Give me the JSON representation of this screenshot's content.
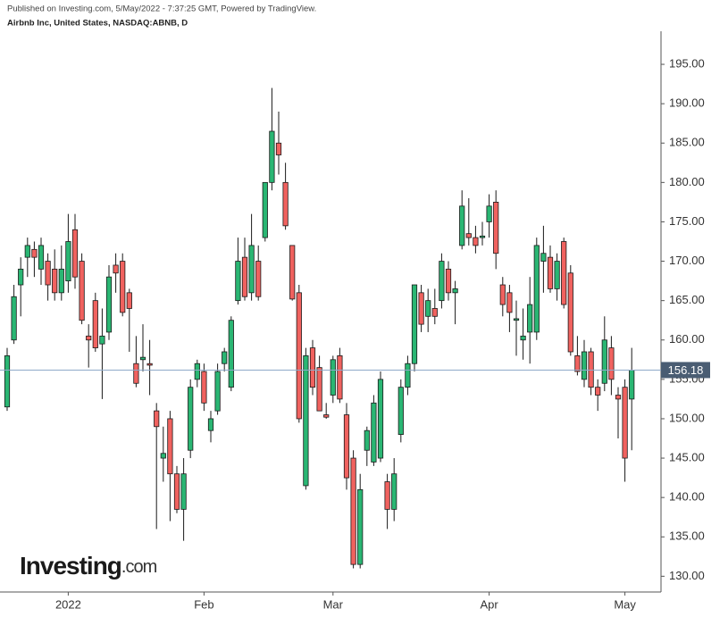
{
  "chart_data": {
    "type": "candlestick",
    "header": "Published on Investing.com, 5/May/2022 - 7:37:25 GMT, Powered by TradingView.",
    "title": "Airbnb Inc, United States, NASDAQ:ABNB, D",
    "watermark": [
      "Investing",
      ".com"
    ],
    "up_color": "#2ab673",
    "down_color": "#f0625f",
    "categories": [
      null,
      null,
      null,
      null,
      null,
      null,
      null,
      null,
      null,
      "2022",
      null,
      null,
      null,
      null,
      null,
      null,
      null,
      null,
      null,
      null,
      null,
      null,
      null,
      null,
      null,
      null,
      null,
      null,
      null,
      "Feb",
      null,
      null,
      null,
      null,
      null,
      null,
      null,
      null,
      null,
      null,
      null,
      null,
      null,
      null,
      null,
      null,
      null,
      null,
      "Mar",
      null,
      null,
      null,
      null,
      null,
      null,
      null,
      null,
      null,
      null,
      null,
      null,
      null,
      null,
      null,
      null,
      null,
      null,
      null,
      null,
      null,
      null,
      "Apr",
      null,
      null,
      null,
      null,
      null,
      null,
      null,
      null,
      null,
      null,
      null,
      null,
      null,
      null,
      null,
      null,
      null,
      null,
      null,
      "May",
      null
    ],
    "open": [
      151.5,
      160,
      167,
      170.5,
      171.5,
      169,
      170,
      169,
      166,
      167.5,
      174,
      170,
      160.5,
      165,
      159.5,
      161,
      169.5,
      170,
      166,
      157,
      157.5,
      157,
      151,
      145,
      150,
      143,
      138.5,
      146,
      155,
      156,
      148.5,
      151,
      157,
      154,
      165,
      170.5,
      166,
      170,
      173,
      180,
      185,
      180,
      172,
      166,
      141.5,
      159,
      156.5,
      150.5,
      153,
      158,
      150.5,
      145,
      131.5,
      146,
      144.5,
      145,
      142,
      138.5,
      148,
      154,
      157,
      166,
      163,
      164,
      165,
      169,
      166,
      172,
      173.5,
      173,
      173,
      175,
      177.5,
      167,
      166,
      162.5,
      160,
      161,
      161,
      170,
      170.5,
      166.5,
      172.5,
      168.5,
      158,
      155,
      158.5,
      154,
      154.5,
      159,
      153,
      154,
      152.5
    ],
    "high": [
      159,
      167,
      170.5,
      173,
      172.5,
      173,
      171,
      171.5,
      172,
      176,
      176,
      171,
      162,
      166,
      164,
      169.5,
      171,
      171,
      166.5,
      160.5,
      162,
      160,
      152,
      149,
      151,
      144,
      145,
      155,
      157.5,
      157,
      151,
      157,
      159,
      163,
      173,
      173,
      176,
      172,
      180,
      192,
      189,
      182.5,
      172,
      167,
      159,
      160,
      158,
      152,
      158,
      159,
      152,
      146,
      143,
      149,
      153,
      156,
      143,
      145,
      155,
      158,
      167,
      167,
      166.5,
      166.5,
      171,
      170,
      167.5,
      179,
      178,
      174.5,
      175,
      178.5,
      179,
      168,
      167,
      165,
      164,
      168,
      173,
      174.5,
      172,
      171,
      173,
      169.5,
      160.5,
      160,
      159,
      155,
      163,
      160.5,
      154,
      155,
      159
    ],
    "low": [
      151,
      159.5,
      163,
      168,
      168,
      167,
      165,
      165,
      165,
      166,
      166.5,
      162,
      156.5,
      158.5,
      152.5,
      160,
      166,
      163,
      158.5,
      154,
      156,
      153,
      136,
      142,
      137,
      138,
      134.5,
      145,
      154,
      151,
      147,
      150.5,
      156,
      153.5,
      164.5,
      165,
      165,
      165,
      172.5,
      179,
      181,
      174,
      165,
      149.5,
      141,
      153,
      151,
      150,
      152,
      152,
      141,
      131,
      131,
      144,
      144,
      144.5,
      136,
      137,
      147,
      153,
      156,
      161,
      161,
      162,
      164,
      165,
      162,
      171.5,
      172,
      171,
      172,
      173,
      169,
      163,
      161,
      158,
      157.5,
      157,
      160,
      166,
      166,
      165,
      164,
      158,
      155.5,
      154,
      153,
      151,
      153.5,
      153,
      147.5,
      142,
      146
    ],
    "close": [
      158,
      165.5,
      169,
      172,
      170.5,
      172,
      167,
      166,
      169,
      172.5,
      168,
      162.5,
      160,
      159,
      160.5,
      168,
      168.5,
      163.5,
      164,
      154.5,
      157.8,
      156.8,
      149,
      145.6,
      143,
      138.5,
      143,
      154,
      157,
      152,
      150,
      156,
      158.5,
      162.5,
      170,
      165.5,
      172,
      165.5,
      180,
      186.5,
      183.5,
      174.5,
      165.2,
      150,
      158,
      154,
      151,
      150.2,
      157.5,
      152.5,
      142.5,
      131.5,
      141,
      148.5,
      152,
      155,
      138.5,
      143,
      154,
      157,
      167,
      162,
      165,
      163,
      170,
      166,
      166.5,
      177,
      173,
      172,
      173.2,
      177,
      171,
      164.5,
      163.5,
      162.7,
      160.5,
      164.5,
      172,
      171,
      166.5,
      170,
      164.5,
      158.5,
      156,
      158.5,
      154,
      153,
      160,
      155,
      152.5,
      145,
      156.18
    ],
    "ylim": [
      128,
      199.2
    ],
    "yticks": [
      {
        "value": 130,
        "label": "130.00"
      },
      {
        "value": 135,
        "label": "135.00"
      },
      {
        "value": 140,
        "label": "140.00"
      },
      {
        "value": 145,
        "label": "145.00"
      },
      {
        "value": 150,
        "label": "150.00"
      },
      {
        "value": 155,
        "label": "155.00"
      },
      {
        "value": 160,
        "label": "160.00"
      },
      {
        "value": 165,
        "label": "165.00"
      },
      {
        "value": 170,
        "label": "170.00"
      },
      {
        "value": 175,
        "label": "175.00"
      },
      {
        "value": 180,
        "label": "180.00"
      },
      {
        "value": 185,
        "label": "185.00"
      },
      {
        "value": 190,
        "label": "190.00"
      },
      {
        "value": 195,
        "label": "195.00"
      }
    ]
  }
}
